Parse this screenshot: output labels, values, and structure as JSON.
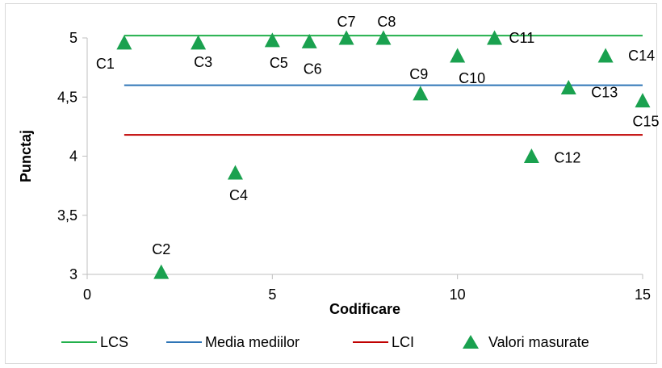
{
  "chart_data": {
    "type": "scatter",
    "title": "",
    "xlabel": "Codificare",
    "ylabel": "Punctaj",
    "xlim": [
      0,
      15
    ],
    "ylim": [
      3,
      5
    ],
    "x_ticks": [
      0,
      5,
      10,
      15
    ],
    "x_tick_labels": [
      "0",
      "5",
      "10",
      "15"
    ],
    "y_ticks": [
      3,
      3.5,
      4,
      4.5,
      5
    ],
    "y_tick_labels": [
      "3",
      "3,5",
      "4",
      "4,5",
      "5"
    ],
    "grid": false,
    "legend_position": "bottom",
    "lines": [
      {
        "name": "LCS",
        "color": "#22b04b",
        "y": 5.02,
        "x_range": [
          1,
          15
        ]
      },
      {
        "name": "Media mediilor",
        "color": "#2e75b6",
        "y": 4.6,
        "x_range": [
          1,
          15
        ]
      },
      {
        "name": "LCI",
        "color": "#c00000",
        "y": 4.18,
        "x_range": [
          1,
          15
        ]
      }
    ],
    "points_series": {
      "name": "Valori masurate",
      "color": "#1aa14f",
      "points": [
        {
          "x": 1,
          "y": 4.96,
          "label": "C1"
        },
        {
          "x": 2,
          "y": 3.02,
          "label": "C2"
        },
        {
          "x": 3,
          "y": 4.96,
          "label": "C3"
        },
        {
          "x": 4,
          "y": 3.86,
          "label": "C4"
        },
        {
          "x": 5,
          "y": 4.98,
          "label": "C5"
        },
        {
          "x": 6,
          "y": 4.97,
          "label": "C6"
        },
        {
          "x": 7,
          "y": 5.0,
          "label": "C7"
        },
        {
          "x": 8,
          "y": 5.0,
          "label": "C8"
        },
        {
          "x": 9,
          "y": 4.53,
          "label": "C9"
        },
        {
          "x": 10,
          "y": 4.85,
          "label": "C10"
        },
        {
          "x": 11,
          "y": 5.0,
          "label": "C11"
        },
        {
          "x": 12,
          "y": 4.0,
          "label": "C12"
        },
        {
          "x": 13,
          "y": 4.58,
          "label": "C13"
        },
        {
          "x": 14,
          "y": 4.85,
          "label": "C14"
        },
        {
          "x": 15,
          "y": 4.47,
          "label": "C15"
        }
      ]
    }
  }
}
